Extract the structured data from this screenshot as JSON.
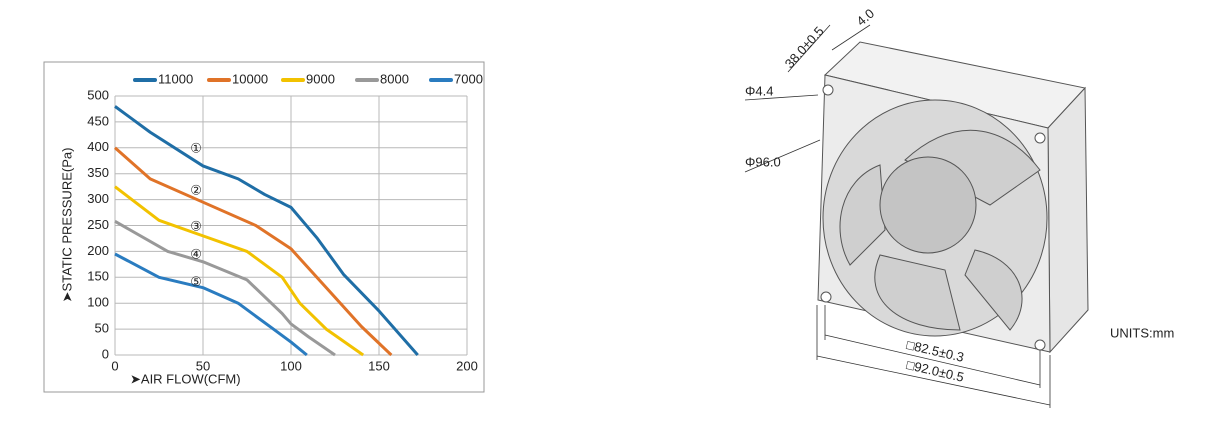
{
  "chart_data": {
    "type": "line",
    "xlabel": "➤AIR FLOW(CFM)",
    "ylabel": "➤STATIC PRESSURE(Pa)",
    "xlim": [
      0,
      200
    ],
    "xticks": [
      0,
      50,
      100,
      150,
      200
    ],
    "ylim": [
      0,
      500
    ],
    "yticks": [
      0,
      50,
      100,
      150,
      200,
      250,
      300,
      350,
      400,
      450,
      500
    ],
    "grid": true,
    "legend": "top",
    "series": [
      {
        "name": "11000",
        "color": "#1f6ea6",
        "curve_label": "①",
        "x": [
          0,
          20,
          50,
          70,
          85,
          100,
          115,
          130,
          150,
          172
        ],
        "values": [
          480,
          430,
          365,
          340,
          310,
          285,
          225,
          155,
          85,
          0
        ]
      },
      {
        "name": "10000",
        "color": "#e07328",
        "curve_label": "②",
        "x": [
          0,
          20,
          50,
          80,
          100,
          120,
          140,
          157
        ],
        "values": [
          400,
          340,
          295,
          250,
          205,
          130,
          55,
          0
        ]
      },
      {
        "name": "9000",
        "color": "#f2c200",
        "curve_label": "③",
        "x": [
          0,
          25,
          50,
          75,
          95,
          105,
          120,
          141
        ],
        "values": [
          325,
          260,
          230,
          200,
          150,
          100,
          50,
          0
        ]
      },
      {
        "name": "8000",
        "color": "#999999",
        "curve_label": "④",
        "x": [
          0,
          30,
          50,
          75,
          95,
          100,
          110,
          125
        ],
        "values": [
          258,
          200,
          180,
          145,
          80,
          60,
          35,
          0
        ]
      },
      {
        "name": "7000",
        "color": "#2a7cc0",
        "curve_label": "⑤",
        "x": [
          0,
          25,
          50,
          70,
          90,
          100,
          109
        ],
        "values": [
          195,
          150,
          130,
          100,
          50,
          25,
          0
        ]
      }
    ]
  },
  "drawing": {
    "dimensions": [
      "38.0±0.5",
      "4.0",
      "Φ4.4",
      "Φ96.0",
      "□82.5±0.3",
      "□92.0±0.5"
    ],
    "units": "UNITS:mm"
  }
}
